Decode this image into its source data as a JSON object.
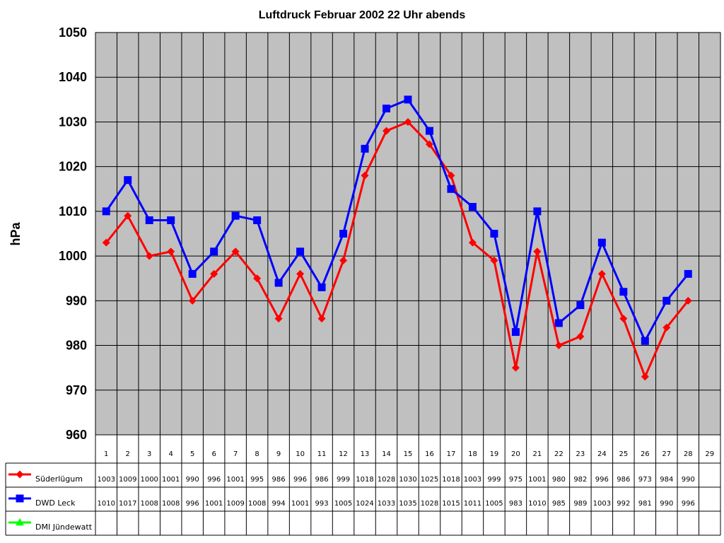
{
  "chart_data": {
    "type": "line",
    "title": "Luftdruck Februar 2002 22 Uhr abends",
    "ylabel": "hPa",
    "xlabel": "",
    "ylim": [
      960,
      1050
    ],
    "yticks": [
      960,
      970,
      980,
      990,
      1000,
      1010,
      1020,
      1030,
      1040,
      1050
    ],
    "categories": [
      "1",
      "2",
      "3",
      "4",
      "5",
      "6",
      "7",
      "8",
      "9",
      "10",
      "11",
      "12",
      "13",
      "14",
      "15",
      "16",
      "17",
      "18",
      "19",
      "20",
      "21",
      "22",
      "23",
      "24",
      "25",
      "26",
      "27",
      "28",
      "29"
    ],
    "grid": true,
    "legend_placement": "data-table-left",
    "plot_background": "#c0c0c0",
    "series": [
      {
        "name": "Süderlügum",
        "color": "#ff0000",
        "marker": "diamond",
        "values": [
          1003,
          1009,
          1000,
          1001,
          990,
          996,
          1001,
          995,
          986,
          996,
          986,
          999,
          1018,
          1028,
          1030,
          1025,
          1018,
          1003,
          999,
          975,
          1001,
          980,
          982,
          996,
          986,
          973,
          984,
          990,
          null
        ]
      },
      {
        "name": "DWD Leck",
        "color": "#0000ff",
        "marker": "square",
        "values": [
          1010,
          1017,
          1008,
          1008,
          996,
          1001,
          1009,
          1008,
          994,
          1001,
          993,
          1005,
          1024,
          1033,
          1035,
          1028,
          1015,
          1011,
          1005,
          983,
          1010,
          985,
          989,
          1003,
          992,
          981,
          990,
          996,
          null
        ]
      },
      {
        "name": "DMI Jündewatt",
        "color": "#00ff00",
        "marker": "triangle",
        "values": [
          null,
          null,
          null,
          null,
          null,
          null,
          null,
          null,
          null,
          null,
          null,
          null,
          null,
          null,
          null,
          null,
          null,
          null,
          null,
          null,
          null,
          null,
          null,
          null,
          null,
          null,
          null,
          null,
          null
        ]
      }
    ]
  }
}
